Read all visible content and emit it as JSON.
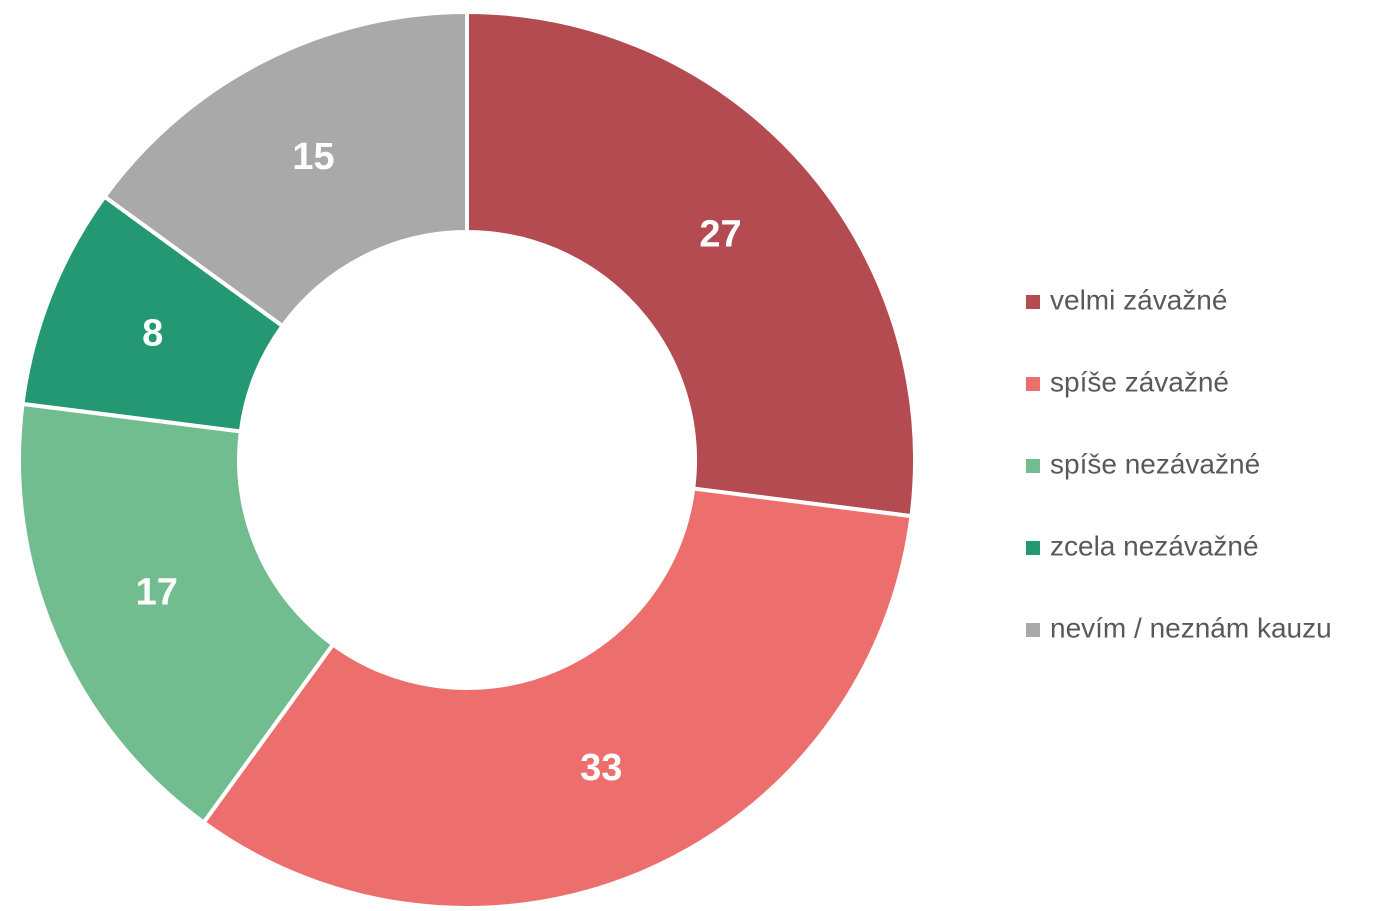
{
  "chart_data": {
    "type": "donut",
    "categories": [
      "velmi závažné",
      "spíše závažné",
      "spíše nezávažné",
      "zcela nezávažné",
      "nevím / neznám kauzu"
    ],
    "values": [
      27,
      33,
      17,
      8,
      15
    ],
    "colors": [
      "#b34b50",
      "#ec6f6d",
      "#72bd8f",
      "#239872",
      "#a9a9a9"
    ],
    "legend": "right"
  }
}
